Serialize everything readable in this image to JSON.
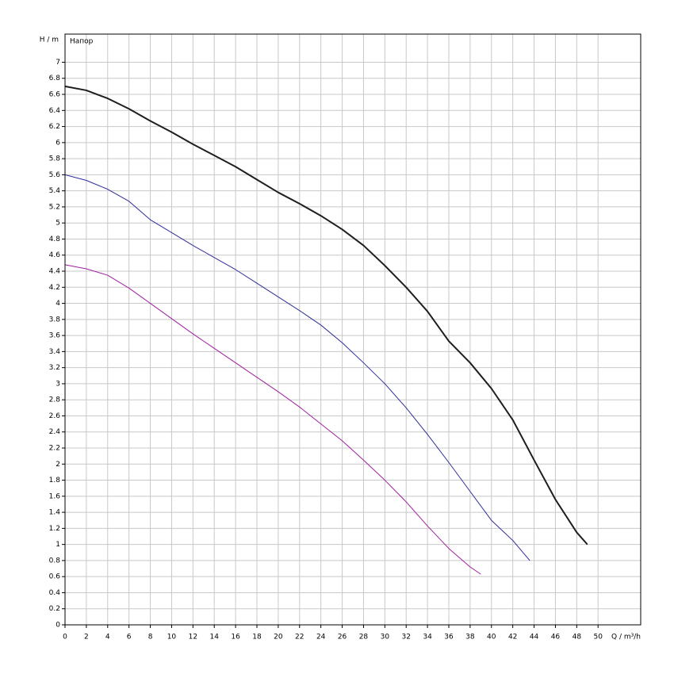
{
  "chart_data": {
    "type": "line",
    "title": "Напор",
    "y_label": "H / m",
    "x_label": "Q / m³/h",
    "xlim": [
      0,
      54
    ],
    "ylim": [
      0,
      7.35
    ],
    "xticks": [
      0,
      2,
      4,
      6,
      8,
      10,
      12,
      14,
      16,
      18,
      20,
      22,
      24,
      26,
      28,
      30,
      32,
      34,
      36,
      38,
      40,
      42,
      44,
      46,
      48,
      50
    ],
    "yticks": [
      0,
      0.2,
      0.4,
      0.6,
      0.8,
      1,
      1.2,
      1.4,
      1.6,
      1.8,
      2,
      2.2,
      2.4,
      2.6,
      2.8,
      3,
      3.2,
      3.4,
      3.6,
      3.8,
      4,
      4.2,
      4.4,
      4.6,
      4.8,
      5,
      5.2,
      5.4,
      5.6,
      5.8,
      6,
      6.2,
      6.4,
      6.6,
      6.8,
      7
    ],
    "grid": true,
    "series": [
      {
        "color": "#1e1e1e",
        "width": 2,
        "x": [
          0,
          2,
          4,
          6,
          8,
          10,
          12,
          14,
          16,
          18,
          20,
          22,
          24,
          26,
          28,
          30,
          32,
          34,
          36,
          38,
          40,
          42,
          44,
          46,
          48,
          49
        ],
        "values": [
          6.7,
          6.65,
          6.55,
          6.42,
          6.27,
          6.13,
          5.98,
          5.84,
          5.7,
          5.54,
          5.38,
          5.24,
          5.09,
          4.92,
          4.72,
          4.47,
          4.2,
          3.9,
          3.53,
          3.26,
          2.94,
          2.55,
          2.05,
          1.56,
          1.15,
          1.0
        ]
      },
      {
        "color": "#2e2e9c",
        "width": 1,
        "x": [
          0,
          2,
          4,
          6,
          8,
          10,
          12,
          14,
          16,
          18,
          20,
          22,
          24,
          26,
          28,
          30,
          32,
          34,
          36,
          38,
          40,
          42,
          43.6
        ],
        "values": [
          5.6,
          5.53,
          5.42,
          5.27,
          5.04,
          4.88,
          4.72,
          4.57,
          4.42,
          4.25,
          4.08,
          3.91,
          3.73,
          3.51,
          3.26,
          3.0,
          2.7,
          2.37,
          2.02,
          1.66,
          1.3,
          1.05,
          0.8
        ]
      },
      {
        "color": "#a020a0",
        "width": 1,
        "x": [
          0,
          2,
          4,
          6,
          8,
          10,
          12,
          14,
          16,
          18,
          20,
          22,
          24,
          26,
          28,
          30,
          32,
          34,
          36,
          38,
          39
        ],
        "values": [
          4.48,
          4.43,
          4.35,
          4.19,
          4.0,
          3.81,
          3.62,
          3.44,
          3.26,
          3.08,
          2.9,
          2.71,
          2.5,
          2.29,
          2.05,
          1.8,
          1.53,
          1.23,
          0.95,
          0.72,
          0.63
        ]
      }
    ]
  }
}
